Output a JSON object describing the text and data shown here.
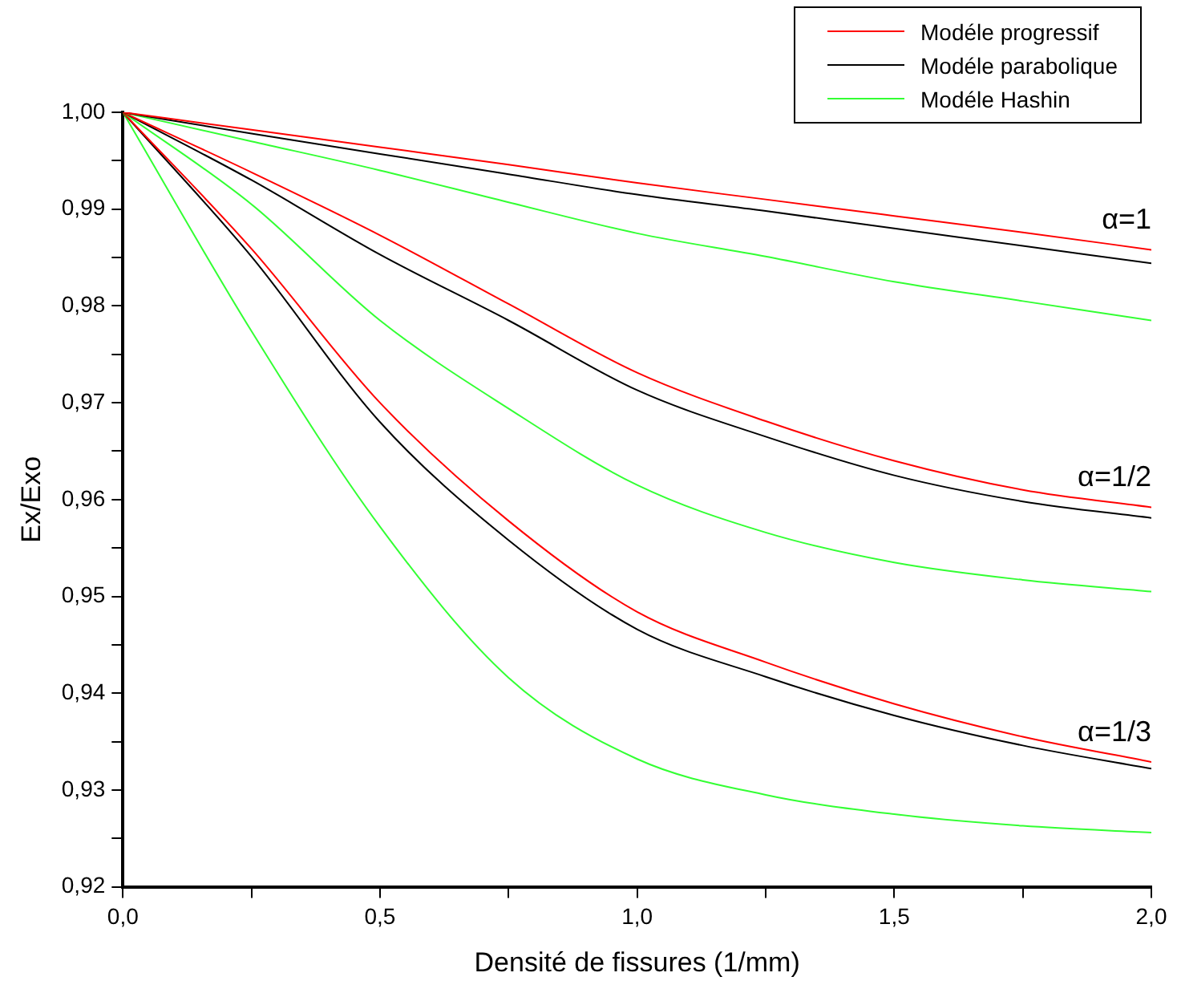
{
  "chart_data": {
    "type": "line",
    "xlabel": "Densité de fissures (1/mm)",
    "ylabel": "Ex/Exo",
    "xlim": [
      0,
      2
    ],
    "ylim": [
      0.92,
      1.0
    ],
    "xticks": [
      {
        "value": 0,
        "label": "0,0"
      },
      {
        "value": 0.25,
        "label": null
      },
      {
        "value": 0.5,
        "label": "0,5"
      },
      {
        "value": 0.75,
        "label": null
      },
      {
        "value": 1,
        "label": "1,0"
      },
      {
        "value": 1.25,
        "label": null
      },
      {
        "value": 1.5,
        "label": "1,5"
      },
      {
        "value": 1.75,
        "label": null
      },
      {
        "value": 2,
        "label": "2,0"
      }
    ],
    "yticks": [
      {
        "value": 0.92,
        "label": "0,92"
      },
      {
        "value": 0.925,
        "label": null
      },
      {
        "value": 0.93,
        "label": "0,93"
      },
      {
        "value": 0.935,
        "label": null
      },
      {
        "value": 0.94,
        "label": "0,94"
      },
      {
        "value": 0.945,
        "label": null
      },
      {
        "value": 0.95,
        "label": "0,95"
      },
      {
        "value": 0.955,
        "label": null
      },
      {
        "value": 0.96,
        "label": "0,96"
      },
      {
        "value": 0.965,
        "label": null
      },
      {
        "value": 0.97,
        "label": "0,97"
      },
      {
        "value": 0.975,
        "label": null
      },
      {
        "value": 0.98,
        "label": "0,98"
      },
      {
        "value": 0.985,
        "label": null
      },
      {
        "value": 0.99,
        "label": "0,99"
      },
      {
        "value": 0.995,
        "label": null
      },
      {
        "value": 1.0,
        "label": "1,00"
      }
    ],
    "x": [
      0,
      0.25,
      0.5,
      0.75,
      1,
      1.25,
      1.5,
      1.75,
      2
    ],
    "grid": false,
    "legend": "top right",
    "marker": "none",
    "line_style": "solid",
    "series": [
      {
        "name": "Modéle progressif",
        "color": "#ff0000",
        "values": [
          1,
          0.9982,
          0.9964,
          0.9946,
          0.9927,
          0.991,
          0.9893,
          0.9876,
          0.9858
        ]
      },
      {
        "name": "Modéle parabolique",
        "color": "#000000",
        "values": [
          1,
          0.9978,
          0.9957,
          0.9936,
          0.9915,
          0.9898,
          0.988,
          0.9862,
          0.9844
        ]
      },
      {
        "name": "Modéle Hashin",
        "color": "#33ff33",
        "values": [
          1,
          0.997,
          0.994,
          0.9907,
          0.9875,
          0.9851,
          0.9825,
          0.9805,
          0.9785
        ]
      },
      {
        "color": "#ff0000",
        "values": [
          1,
          0.9938,
          0.9873,
          0.9802,
          0.9731,
          0.9681,
          0.964,
          0.961,
          0.9592
        ]
      },
      {
        "color": "#000000",
        "values": [
          1,
          0.993,
          0.9853,
          0.9785,
          0.9713,
          0.9665,
          0.9625,
          0.9598,
          0.9581
        ]
      },
      {
        "color": "#33ff33",
        "values": [
          1,
          0.9905,
          0.9785,
          0.9694,
          0.9615,
          0.9566,
          0.9535,
          0.9517,
          0.9505
        ]
      },
      {
        "color": "#ff0000",
        "values": [
          1,
          0.9859,
          0.97,
          0.9578,
          0.9484,
          0.9432,
          0.9389,
          0.9355,
          0.9329
        ]
      },
      {
        "color": "#000000",
        "values": [
          1,
          0.9851,
          0.968,
          0.9558,
          0.9466,
          0.9417,
          0.9377,
          0.9346,
          0.9322
        ]
      },
      {
        "color": "#33ff33",
        "values": [
          1,
          0.9774,
          0.9572,
          0.9416,
          0.9332,
          0.9295,
          0.9275,
          0.9263,
          0.9256
        ]
      }
    ],
    "annotations": [
      "α=1",
      "α=1/2",
      "α=1/3"
    ]
  }
}
